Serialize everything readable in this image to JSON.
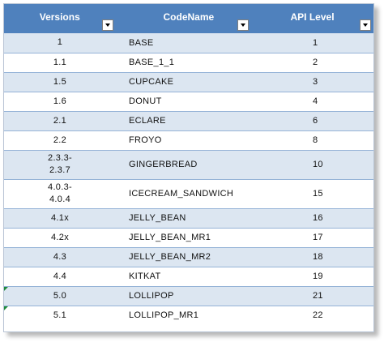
{
  "table": {
    "headers": {
      "versions": "Versions",
      "codename": "CodeName",
      "api_level": "API Level"
    },
    "rows": [
      {
        "version": "1",
        "codename": "BASE",
        "api": "1"
      },
      {
        "version": "1.1",
        "codename": "BASE_1_1",
        "api": "2"
      },
      {
        "version": "1.5",
        "codename": "CUPCAKE",
        "api": "3"
      },
      {
        "version": "1.6",
        "codename": "DONUT",
        "api": "4"
      },
      {
        "version": "2.1",
        "codename": "ECLARE",
        "api": "6"
      },
      {
        "version": "2.2",
        "codename": "FROYO",
        "api": "8"
      },
      {
        "version": "2.3.3-2.3.7",
        "codename": "GINGERBREAD",
        "api": "10"
      },
      {
        "version": "4.0.3-4.0.4",
        "codename": "ICECREAM_SANDWICH",
        "api": "15"
      },
      {
        "version": "4.1x",
        "codename": "JELLY_BEAN",
        "api": "16"
      },
      {
        "version": "4.2x",
        "codename": "JELLY_BEAN_MR1",
        "api": "17"
      },
      {
        "version": "4.3",
        "codename": "JELLY_BEAN_MR2",
        "api": "18"
      },
      {
        "version": "4.4",
        "codename": "KITKAT",
        "api": "19"
      },
      {
        "version": "5.0",
        "codename": "LOLLIPOP",
        "api": "21"
      },
      {
        "version": "5.1",
        "codename": "LOLLIPOP_MR1",
        "api": "22"
      }
    ]
  },
  "colors": {
    "header_bg": "#4f81bd",
    "band_row_bg": "#dce6f1",
    "row_bg": "#ffffff",
    "row_border": "#95b3d7",
    "error_indicator": "#1e8a3c"
  },
  "icons": {
    "filter_button": "filter-dropdown-icon",
    "error_indicator": "error-indicator-icon"
  }
}
